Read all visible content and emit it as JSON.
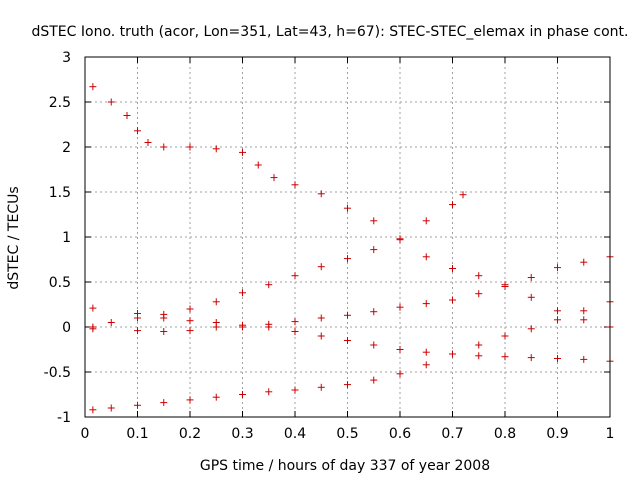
{
  "chart_data": {
    "type": "scatter",
    "title": "dSTEC Iono. truth (acor, Lon=351, Lat=43, h=67): STEC-STEC_elemax in phase cont.",
    "xlabel": "GPS time / hours of day 337 of year 2008",
    "ylabel": "dSTEC  / TECUs",
    "xlim": [
      0,
      1
    ],
    "ylim": [
      -1,
      3
    ],
    "xticks": [
      "0",
      "0.1",
      "0.2",
      "0.3",
      "0.4",
      "0.5",
      "0.6",
      "0.7",
      "0.8",
      "0.9",
      "1"
    ],
    "yticks": [
      "-1",
      "-0.5",
      "0",
      "0.5",
      "1",
      "1.5",
      "2",
      "2.5",
      "3"
    ],
    "xtick_values": [
      0,
      0.1,
      0.2,
      0.3,
      0.4,
      0.5,
      0.6,
      0.7,
      0.8,
      0.9,
      1
    ],
    "ytick_values": [
      -1,
      -0.5,
      0,
      0.5,
      1,
      1.5,
      2,
      2.5,
      3
    ],
    "grid": true,
    "marker": "+",
    "marker_color": "#cc0000",
    "series": [
      {
        "x": [
          0.015,
          0.05,
          0.08,
          0.1,
          0.12,
          0.15,
          0.2,
          0.25,
          0.3,
          0.33,
          0.36,
          0.4,
          0.45,
          0.5,
          0.55,
          0.6,
          0.65,
          0.7,
          0.75,
          0.8,
          0.85,
          0.9,
          0.95,
          1.0
        ],
        "y": [
          2.67,
          2.5,
          2.35,
          2.18,
          2.05,
          2.0,
          2.0,
          1.98,
          1.94,
          1.8,
          1.66,
          1.58,
          1.48,
          1.32,
          1.18,
          0.97,
          0.78,
          0.65,
          0.57,
          0.47,
          0.33,
          0.18,
          0.08,
          0.0
        ]
      },
      {
        "x": [
          0.015,
          0.05,
          0.1,
          0.15,
          0.2,
          0.25,
          0.3,
          0.35,
          0.4,
          0.45,
          0.5,
          0.55,
          0.6,
          0.65,
          0.7,
          0.72
        ],
        "y": [
          0.0,
          0.05,
          0.1,
          0.14,
          0.2,
          0.28,
          0.38,
          0.47,
          0.57,
          0.67,
          0.76,
          0.86,
          0.98,
          1.18,
          1.36,
          1.47
        ]
      },
      {
        "x": [
          0.015,
          0.1,
          0.15,
          0.2,
          0.25,
          0.3,
          0.35,
          0.4,
          0.45,
          0.5,
          0.55,
          0.6,
          0.65,
          0.7,
          0.75,
          0.8,
          0.85,
          0.9,
          0.95,
          1.0
        ],
        "y": [
          0.21,
          0.15,
          0.1,
          0.07,
          0.05,
          0.02,
          0.0,
          -0.05,
          -0.1,
          -0.15,
          -0.2,
          -0.25,
          -0.28,
          -0.3,
          -0.32,
          -0.33,
          -0.34,
          -0.35,
          -0.36,
          -0.38
        ]
      },
      {
        "x": [
          0.015,
          0.1,
          0.15,
          0.2,
          0.25,
          0.3,
          0.35,
          0.4,
          0.45,
          0.5,
          0.55,
          0.6,
          0.65,
          0.7,
          0.75,
          0.8,
          0.85,
          0.9,
          0.95,
          1.0
        ],
        "y": [
          -0.02,
          -0.04,
          -0.05,
          -0.04,
          0.0,
          0.0,
          0.03,
          0.06,
          0.1,
          0.13,
          0.17,
          0.22,
          0.26,
          0.3,
          0.37,
          0.45,
          0.55,
          0.66,
          0.72,
          0.78
        ]
      },
      {
        "x": [
          0.015,
          0.05,
          0.1,
          0.15,
          0.2,
          0.25,
          0.3,
          0.35,
          0.4,
          0.45,
          0.5,
          0.55,
          0.6,
          0.65,
          0.7,
          0.75,
          0.8,
          0.85,
          0.9,
          0.95,
          1.0
        ],
        "y": [
          -0.92,
          -0.9,
          -0.87,
          -0.84,
          -0.81,
          -0.78,
          -0.75,
          -0.72,
          -0.7,
          -0.67,
          -0.64,
          -0.59,
          -0.52,
          -0.42,
          -0.3,
          -0.2,
          -0.1,
          -0.02,
          0.08,
          0.18,
          0.28
        ]
      }
    ]
  }
}
